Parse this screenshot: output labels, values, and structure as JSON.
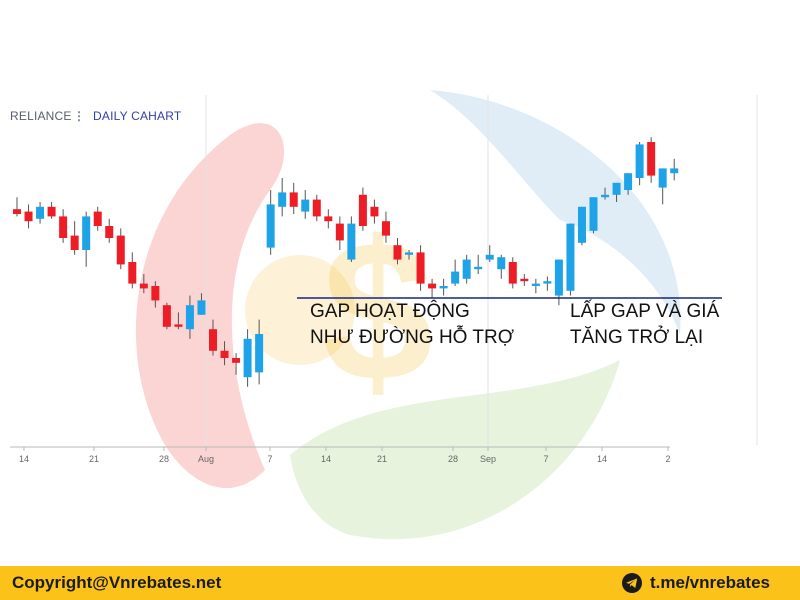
{
  "header": {
    "symbol": "RELIANCE",
    "menu_glyph": "⋮",
    "interval": "DAILY CAHART"
  },
  "colors": {
    "up": "#1ea3e8",
    "down": "#ee1c25",
    "support_line": "#1a237e",
    "footer_bg": "#fbc21a",
    "watermark_red": "#e8413d",
    "watermark_yellow": "#f5b923",
    "watermark_blue": "#3f8fc8",
    "watermark_green": "#7cbf45"
  },
  "annotations": {
    "left": [
      "GAP HOẠT ĐỘNG",
      "NHƯ ĐƯỜNG HỖ TRỢ"
    ],
    "right": [
      "LẤP GAP VÀ GIÁ",
      "TĂNG TRỞ LẠI"
    ]
  },
  "footer": {
    "copyright": "Copyright@Vnrebates.net",
    "telegram": "t.me/vnrebates",
    "telegram_icon": "telegram-icon"
  },
  "chart_data": {
    "type": "candlestick",
    "x_tick_labels": [
      "14",
      "21",
      "28",
      "Aug",
      "7",
      "14",
      "21",
      "28",
      "Sep",
      "7",
      "14",
      "2"
    ],
    "ylim": [
      0,
      100
    ],
    "support_level": 30,
    "candles": [
      {
        "o": 67,
        "h": 72,
        "l": 64,
        "c": 65
      },
      {
        "o": 66,
        "h": 69,
        "l": 59,
        "c": 62
      },
      {
        "o": 63,
        "h": 70,
        "l": 61,
        "c": 68
      },
      {
        "o": 68,
        "h": 70,
        "l": 63,
        "c": 64
      },
      {
        "o": 64,
        "h": 67,
        "l": 53,
        "c": 55
      },
      {
        "o": 56,
        "h": 62,
        "l": 48,
        "c": 50
      },
      {
        "o": 50,
        "h": 66,
        "l": 43,
        "c": 64
      },
      {
        "o": 66,
        "h": 68,
        "l": 58,
        "c": 60
      },
      {
        "o": 60,
        "h": 63,
        "l": 53,
        "c": 55
      },
      {
        "o": 56,
        "h": 59,
        "l": 42,
        "c": 44
      },
      {
        "o": 45,
        "h": 49,
        "l": 34,
        "c": 36
      },
      {
        "o": 36,
        "h": 40,
        "l": 32,
        "c": 34
      },
      {
        "o": 35,
        "h": 37,
        "l": 26,
        "c": 29
      },
      {
        "o": 27,
        "h": 28,
        "l": 17,
        "c": 18
      },
      {
        "o": 19,
        "h": 24,
        "l": 17,
        "c": 18
      },
      {
        "o": 17,
        "h": 31,
        "l": 13,
        "c": 27
      },
      {
        "o": 23,
        "h": 32,
        "l": 23,
        "c": 29
      },
      {
        "o": 17,
        "h": 21,
        "l": 6,
        "c": 8
      },
      {
        "o": 8,
        "h": 12,
        "l": 2,
        "c": 5
      },
      {
        "o": 5,
        "h": 7,
        "l": -2,
        "c": 3
      },
      {
        "o": -3,
        "h": 17,
        "l": -7,
        "c": 13
      },
      {
        "o": -1,
        "h": 21,
        "l": -6,
        "c": 15
      },
      {
        "o": 51,
        "h": 75,
        "l": 48,
        "c": 69
      },
      {
        "o": 68,
        "h": 80,
        "l": 64,
        "c": 74
      },
      {
        "o": 74,
        "h": 78,
        "l": 65,
        "c": 68
      },
      {
        "o": 66,
        "h": 75,
        "l": 63,
        "c": 71
      },
      {
        "o": 71,
        "h": 73,
        "l": 62,
        "c": 64
      },
      {
        "o": 64,
        "h": 67,
        "l": 59,
        "c": 62
      },
      {
        "o": 61,
        "h": 64,
        "l": 50,
        "c": 54
      },
      {
        "o": 46,
        "h": 64,
        "l": 45,
        "c": 61
      },
      {
        "o": 73,
        "h": 76,
        "l": 58,
        "c": 60
      },
      {
        "o": 68,
        "h": 71,
        "l": 61,
        "c": 64
      },
      {
        "o": 62,
        "h": 66,
        "l": 53,
        "c": 56
      },
      {
        "o": 52,
        "h": 55,
        "l": 44,
        "c": 46
      },
      {
        "o": 48,
        "h": 50,
        "l": 46,
        "c": 49
      },
      {
        "o": 49,
        "h": 52,
        "l": 33,
        "c": 36
      },
      {
        "o": 36,
        "h": 38,
        "l": 30,
        "c": 34
      },
      {
        "o": 34,
        "h": 38,
        "l": 31,
        "c": 35
      },
      {
        "o": 36,
        "h": 46,
        "l": 35,
        "c": 41
      },
      {
        "o": 38,
        "h": 48,
        "l": 36,
        "c": 46
      },
      {
        "o": 42,
        "h": 48,
        "l": 40,
        "c": 43
      },
      {
        "o": 46,
        "h": 52,
        "l": 45,
        "c": 48
      },
      {
        "o": 42,
        "h": 48,
        "l": 38,
        "c": 47
      },
      {
        "o": 45,
        "h": 47,
        "l": 34,
        "c": 36
      },
      {
        "o": 38,
        "h": 40,
        "l": 35,
        "c": 37
      },
      {
        "o": 35,
        "h": 38,
        "l": 32,
        "c": 36
      },
      {
        "o": 36,
        "h": 39,
        "l": 33,
        "c": 37
      },
      {
        "o": 31,
        "h": 46,
        "l": 27,
        "c": 46
      },
      {
        "o": 33,
        "h": 61,
        "l": 31,
        "c": 61
      },
      {
        "o": 53,
        "h": 68,
        "l": 52,
        "c": 68
      },
      {
        "o": 58,
        "h": 72,
        "l": 57,
        "c": 72
      },
      {
        "o": 72,
        "h": 76,
        "l": 71,
        "c": 73
      },
      {
        "o": 73,
        "h": 77,
        "l": 70,
        "c": 78
      },
      {
        "o": 75,
        "h": 82,
        "l": 73,
        "c": 82
      },
      {
        "o": 80,
        "h": 95,
        "l": 77,
        "c": 94
      },
      {
        "o": 95,
        "h": 97,
        "l": 78,
        "c": 81
      },
      {
        "o": 76,
        "h": 84,
        "l": 69,
        "c": 84
      },
      {
        "o": 82,
        "h": 88,
        "l": 79,
        "c": 84
      }
    ]
  }
}
